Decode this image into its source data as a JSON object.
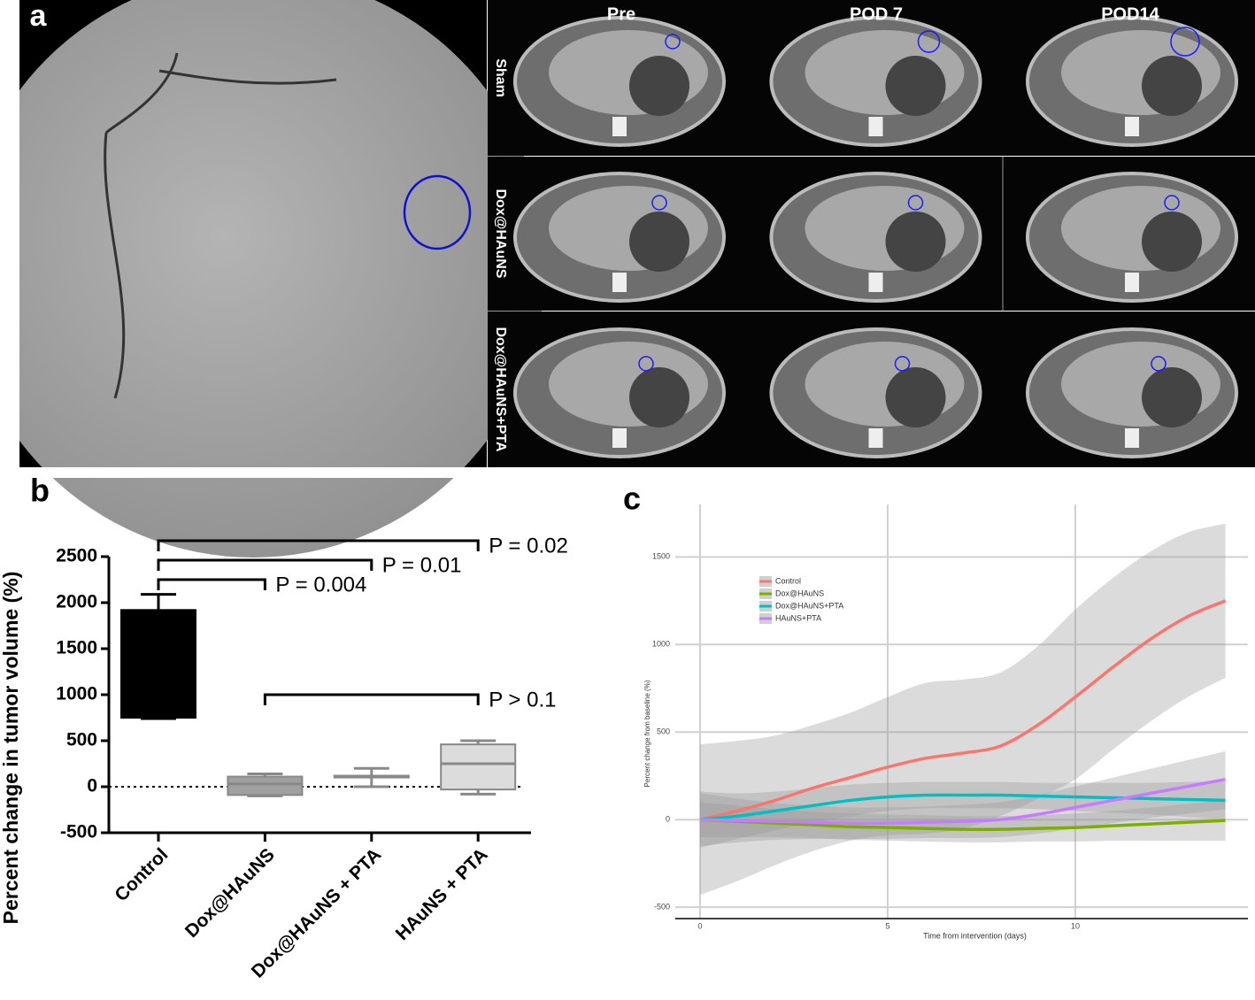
{
  "panel_labels": [
    "a",
    "b",
    "c"
  ],
  "imaging": {
    "columns": [
      "Pre",
      "POD 7",
      "POD14"
    ],
    "rows": [
      "Sham",
      "Dox@HAuNS",
      "Dox@HAuNS+PTA"
    ]
  },
  "chart_data": [
    {
      "type": "box",
      "ylabel": "Percent change in tumor volume (%)",
      "categories": [
        "Control",
        "Dox@HAuNS",
        "Dox@HAuNS + PTA",
        "HAuNS + PTA"
      ],
      "min": [
        740,
        -100,
        0,
        -80
      ],
      "q1": [
        750,
        -90,
        100,
        -30
      ],
      "median": [
        1300,
        30,
        110,
        250
      ],
      "q3": [
        1920,
        110,
        120,
        460
      ],
      "max": [
        2090,
        140,
        200,
        500
      ],
      "colors": [
        "#000000",
        "#a0a0a0",
        "#a0a0a0",
        "#dcdcdc"
      ],
      "ylim": [
        -500,
        2500
      ],
      "yticks": [
        -500,
        0,
        500,
        1000,
        1500,
        2000,
        2500
      ],
      "comparisons": [
        {
          "groups": [
            0,
            1
          ],
          "label": "P = 0.004"
        },
        {
          "groups": [
            0,
            2
          ],
          "label": "P = 0.01"
        },
        {
          "groups": [
            0,
            3
          ],
          "label": "P = 0.02"
        },
        {
          "groups": [
            1,
            3
          ],
          "label": "P > 0.1"
        }
      ]
    },
    {
      "type": "line",
      "xlabel": "Time from intervention (days)",
      "ylabel": "Percent change from baseline (%)",
      "x": [
        0,
        1,
        2,
        3,
        4,
        5,
        6,
        7,
        8,
        9,
        10,
        11,
        12,
        13,
        14
      ],
      "xlim": [
        -0.66,
        14.6
      ],
      "ylim": [
        -565,
        1800
      ],
      "xticks": [
        0,
        5,
        10
      ],
      "yticks": [
        -500,
        0,
        500,
        1000,
        1500
      ],
      "grid": true,
      "series": [
        {
          "name": "Control",
          "color": "#f8766d",
          "values": [
            0,
            50,
            110,
            180,
            240,
            300,
            350,
            380,
            420,
            540,
            700,
            870,
            1030,
            1160,
            1250
          ],
          "upper": [
            430,
            450,
            480,
            540,
            610,
            700,
            780,
            800,
            840,
            990,
            1200,
            1380,
            1530,
            1640,
            1690
          ],
          "lower": [
            -430,
            -350,
            -260,
            -180,
            -120,
            -90,
            -80,
            -50,
            20,
            120,
            230,
            400,
            560,
            700,
            810
          ]
        },
        {
          "name": "Dox@HAuNS",
          "color": "#7cae00",
          "values": [
            0,
            -10,
            -20,
            -30,
            -40,
            -45,
            -50,
            -55,
            -55,
            -50,
            -45,
            -35,
            -25,
            -15,
            -5
          ],
          "upper": [
            100,
            80,
            60,
            45,
            35,
            30,
            25,
            20,
            20,
            25,
            35,
            50,
            70,
            90,
            110
          ],
          "lower": [
            -100,
            -100,
            -100,
            -105,
            -115,
            -120,
            -125,
            -130,
            -130,
            -125,
            -125,
            -120,
            -120,
            -120,
            -120
          ]
        },
        {
          "name": "Dox@HAuNS+PTA",
          "color": "#00bfc4",
          "values": [
            0,
            20,
            50,
            80,
            110,
            130,
            140,
            140,
            140,
            135,
            130,
            125,
            120,
            115,
            110
          ],
          "upper": [
            160,
            150,
            160,
            180,
            200,
            210,
            215,
            215,
            215,
            210,
            210,
            210,
            210,
            215,
            220
          ],
          "lower": [
            -160,
            -110,
            -60,
            -20,
            20,
            50,
            65,
            65,
            65,
            60,
            50,
            40,
            30,
            15,
            0
          ]
        },
        {
          "name": "HAuNS+PTA",
          "color": "#c77cff",
          "values": [
            0,
            -5,
            -10,
            -15,
            -20,
            -20,
            -15,
            -10,
            0,
            30,
            70,
            110,
            150,
            190,
            230
          ],
          "upper": [
            150,
            120,
            95,
            80,
            70,
            70,
            75,
            85,
            100,
            140,
            190,
            240,
            290,
            340,
            390
          ],
          "lower": [
            -150,
            -130,
            -115,
            -110,
            -110,
            -110,
            -105,
            -105,
            -100,
            -80,
            -50,
            -20,
            10,
            35,
            60
          ]
        }
      ]
    }
  ]
}
